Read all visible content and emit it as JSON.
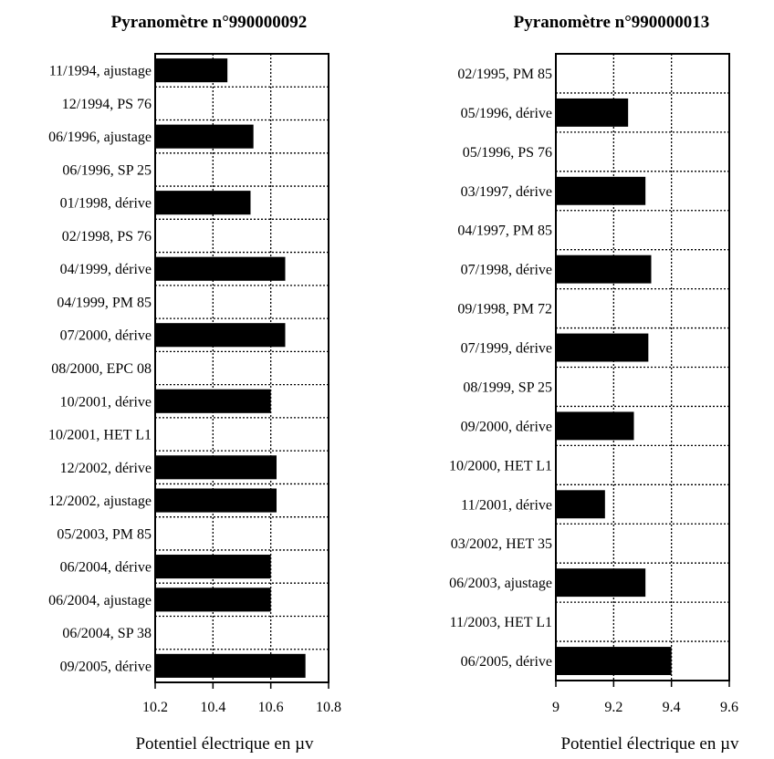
{
  "chart_data": [
    {
      "type": "bar",
      "orientation": "horizontal",
      "title": "Pyranomètre n°990000092",
      "xlabel": "Potentiel électrique en µv",
      "ylabel": "",
      "xlim": [
        10.2,
        10.8
      ],
      "xticks": [
        "10.2",
        "10.4",
        "10.6",
        "10.8"
      ],
      "grid": true,
      "categories": [
        "11/1994, ajustage",
        "12/1994, PS 76",
        "06/1996, ajustage",
        "06/1996, SP 25",
        "01/1998, dérive",
        "02/1998, PS 76",
        "04/1999, dérive",
        "04/1999, PM 85",
        "07/2000, dérive",
        "08/2000, EPC 08",
        "10/2001, dérive",
        "10/2001, HET L1",
        "12/2002, dérive",
        "12/2002, ajustage",
        "05/2003, PM 85",
        "06/2004, dérive",
        "06/2004, ajustage",
        "06/2004, SP 38",
        "09/2005, dérive"
      ],
      "values": [
        10.45,
        null,
        10.54,
        null,
        10.53,
        null,
        10.65,
        null,
        10.65,
        null,
        10.6,
        null,
        10.62,
        10.62,
        null,
        10.6,
        10.6,
        null,
        10.72
      ]
    },
    {
      "type": "bar",
      "orientation": "horizontal",
      "title": "Pyranomètre n°990000013",
      "xlabel": "Potentiel électrique en µv",
      "ylabel": "",
      "xlim": [
        9,
        9.6
      ],
      "xticks": [
        "9",
        "9.2",
        "9.4",
        "9.6"
      ],
      "grid": true,
      "categories": [
        "02/1995, PM 85",
        "05/1996, dérive",
        "05/1996, PS 76",
        "03/1997, dérive",
        "04/1997, PM 85",
        "07/1998, dérive",
        "09/1998, PM 72",
        "07/1999, dérive",
        "08/1999, SP 25",
        "09/2000, dérive",
        "10/2000, HET L1",
        "11/2001, dérive",
        "03/2002, HET 35",
        "06/2003, ajustage",
        "11/2003, HET L1",
        "06/2005, dérive"
      ],
      "values": [
        null,
        9.25,
        null,
        9.31,
        null,
        9.33,
        null,
        9.32,
        null,
        9.27,
        null,
        9.17,
        null,
        9.31,
        null,
        9.4
      ]
    }
  ]
}
